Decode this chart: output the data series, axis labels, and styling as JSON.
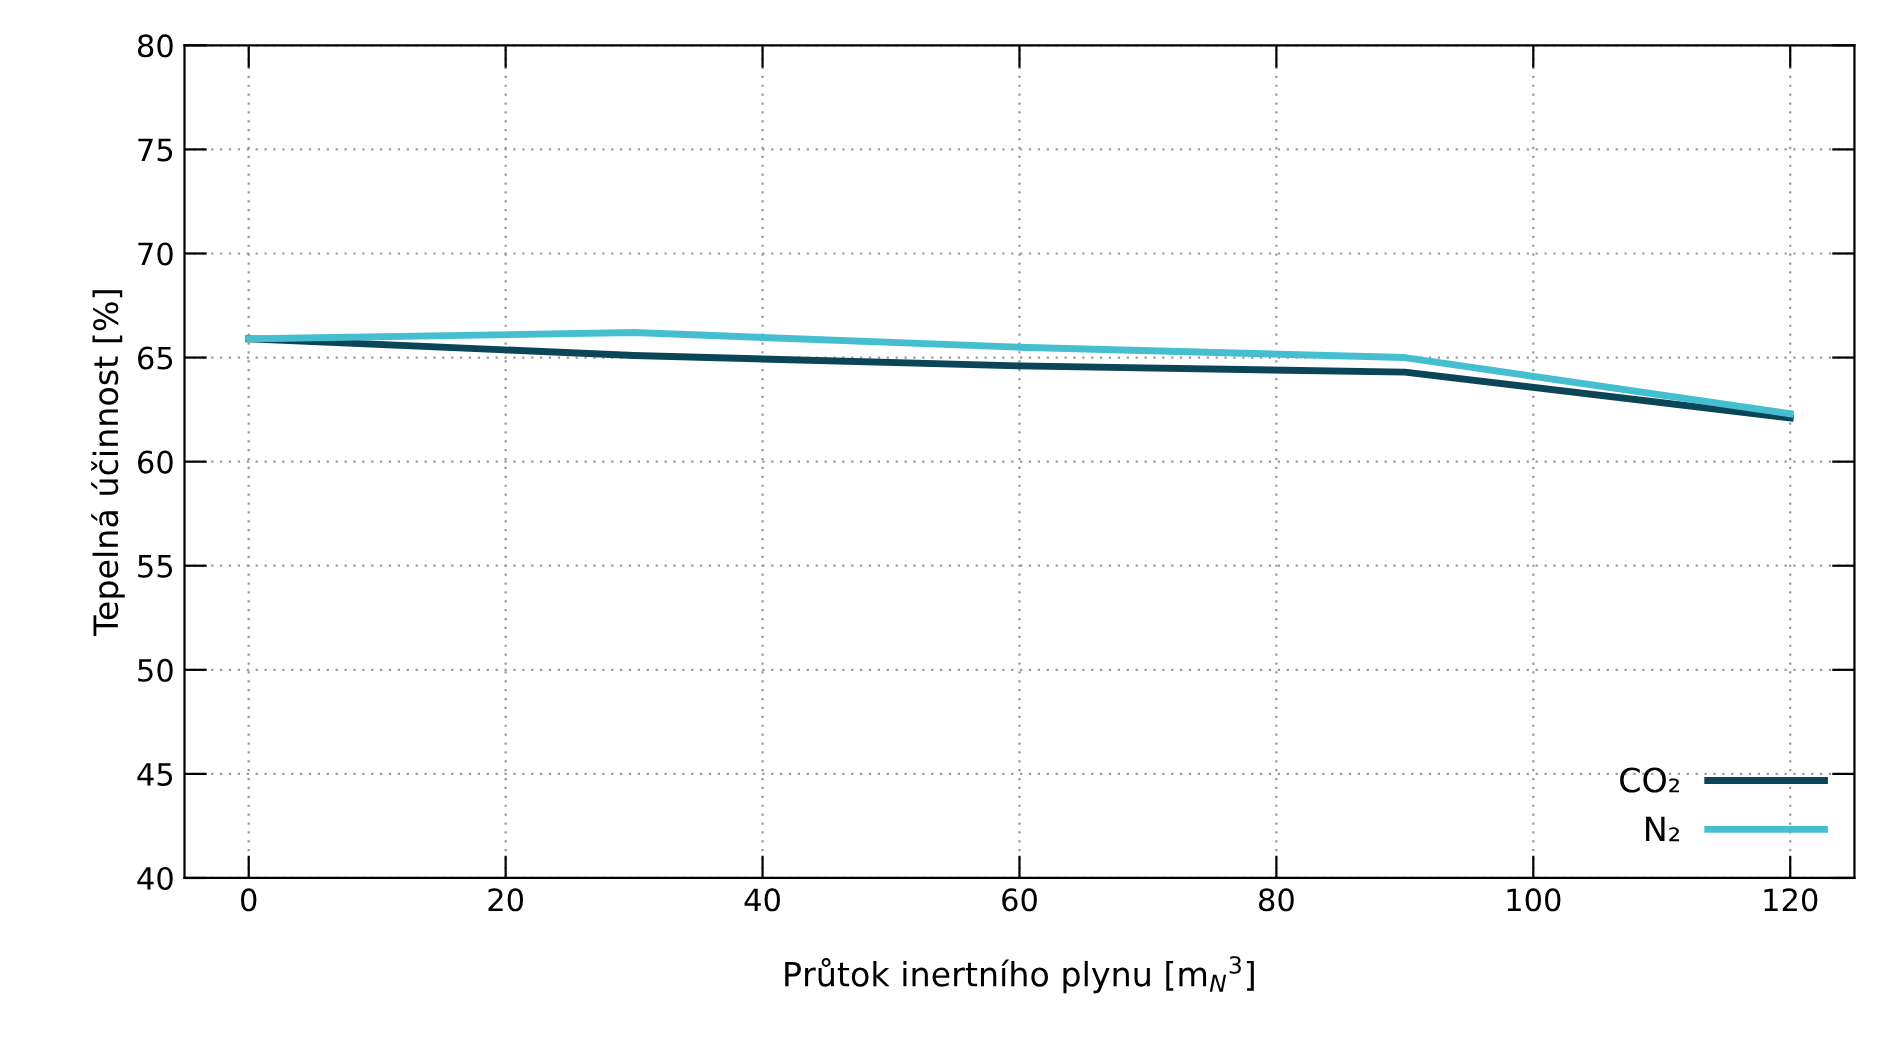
{
  "chart_data": {
    "type": "line",
    "xlabel": "Průtok inertního plynu [m$_{N}$$^{3}$]",
    "ylabel": "Tepelná účinnost [%]",
    "x": [
      0,
      30,
      60,
      90,
      120
    ],
    "series": [
      {
        "name": "CO₂",
        "color": "#0b4558",
        "values": [
          65.9,
          65.1,
          64.6,
          64.3,
          62.1
        ]
      },
      {
        "name": "N₂",
        "color": "#45bfcf",
        "values": [
          65.9,
          66.2,
          65.5,
          65.0,
          62.3
        ]
      }
    ],
    "xlim": [
      -5,
      125
    ],
    "xticks": [
      0,
      20,
      40,
      60,
      80,
      100,
      120
    ],
    "ylim": [
      40,
      80
    ],
    "yticks": [
      40,
      45,
      50,
      55,
      60,
      65,
      70,
      75,
      80
    ],
    "grid": true,
    "legend": "bottom right",
    "line_style": "solid",
    "marker": "none"
  }
}
